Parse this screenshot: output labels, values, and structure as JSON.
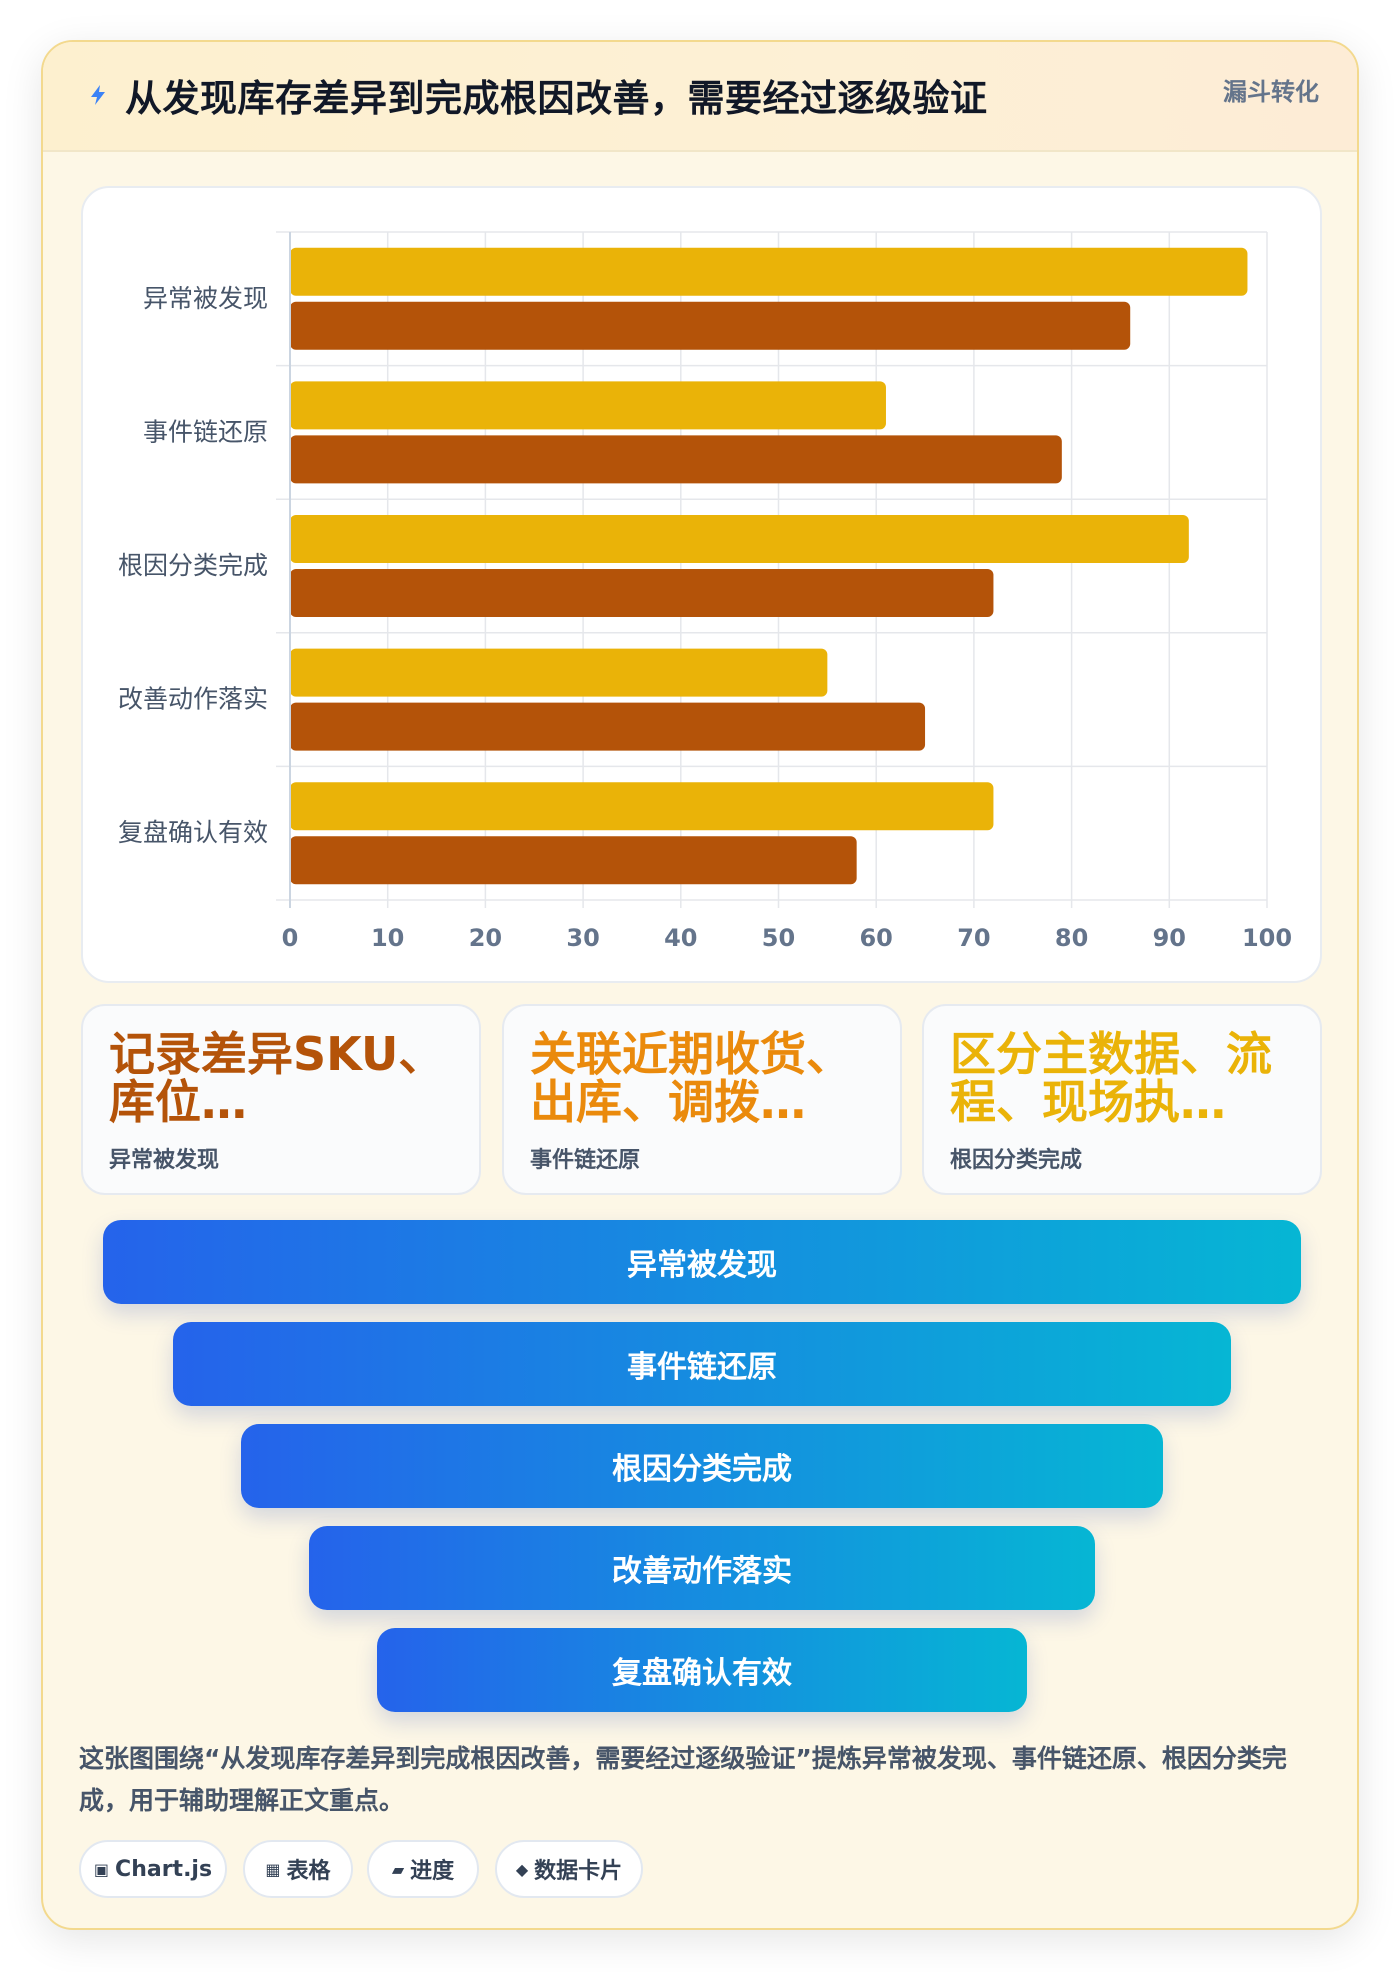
{
  "header": {
    "title": "从发现库存差异到完成根因改善，需要经过逐级验证",
    "tag": "漏斗转化"
  },
  "chart_data": {
    "type": "bar",
    "orientation": "horizontal",
    "categories": [
      "异常被发现",
      "事件链还原",
      "根因分类完成",
      "改善动作落实",
      "复盘确认有效"
    ],
    "series": [
      {
        "values": [
          98,
          61,
          92,
          55,
          72
        ],
        "color": "#eab308"
      },
      {
        "values": [
          86,
          79,
          72,
          65,
          58
        ],
        "color": "#b45309"
      }
    ],
    "xlim": [
      0,
      100
    ],
    "xticks": [
      "0",
      "10",
      "20",
      "30",
      "40",
      "50",
      "60",
      "70",
      "80",
      "90",
      "100"
    ],
    "grid": true,
    "legend": "none"
  },
  "cards": [
    {
      "value": "记录差异SKU、库位…",
      "label": "异常被发现",
      "color": "#b45309"
    },
    {
      "value": "关联近期收货、出库、调拨…",
      "label": "事件链还原",
      "color": "#ea8a0c"
    },
    {
      "value": "区分主数据、流程、现场执…",
      "label": "根因分类完成",
      "color": "#eab308"
    }
  ],
  "funnel": [
    {
      "label": "异常被发现"
    },
    {
      "label": "事件链还原"
    },
    {
      "label": "根因分类完成"
    },
    {
      "label": "改善动作落实"
    },
    {
      "label": "复盘确认有效"
    }
  ],
  "summary": "这张图围绕“从发现库存差异到完成根因改善，需要经过逐级验证”提炼异常被发现、事件链还原、根因分类完成，用于辅助理解正文重点。",
  "pills": [
    {
      "icon": "▣",
      "icon_name": "chart-icon",
      "label": "Chart.js"
    },
    {
      "icon": "▦",
      "icon_name": "table-icon",
      "label": "表格"
    },
    {
      "icon": "▰",
      "icon_name": "progress-icon",
      "label": "进度"
    },
    {
      "icon": "◆",
      "icon_name": "data-card-icon",
      "label": "数据卡片"
    }
  ]
}
